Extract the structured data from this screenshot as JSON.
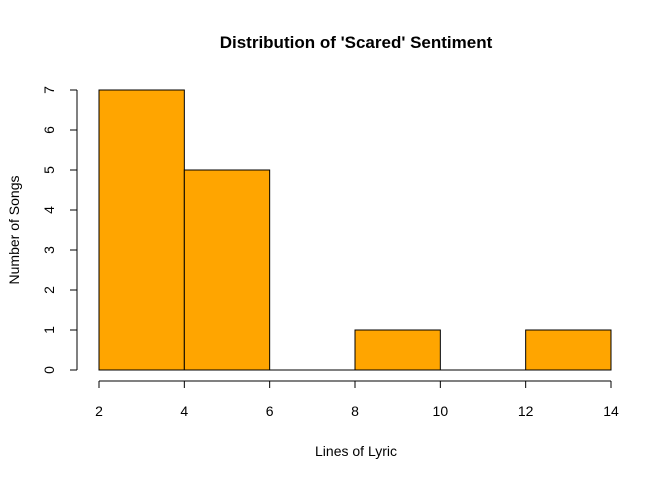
{
  "chart_data": {
    "type": "bar",
    "subtype": "histogram",
    "title": "Distribution of 'Scared' Sentiment",
    "xlabel": "Lines of Lyric",
    "ylabel": "Number of Songs",
    "bins": [
      {
        "start": 2,
        "end": 4,
        "count": 7
      },
      {
        "start": 4,
        "end": 6,
        "count": 5
      },
      {
        "start": 6,
        "end": 8,
        "count": 0
      },
      {
        "start": 8,
        "end": 10,
        "count": 1
      },
      {
        "start": 10,
        "end": 12,
        "count": 0
      },
      {
        "start": 12,
        "end": 14,
        "count": 1
      }
    ],
    "xlim": [
      2,
      14
    ],
    "ylim": [
      0,
      7
    ],
    "xticks": [
      2,
      4,
      6,
      8,
      10,
      12,
      14
    ],
    "yticks": [
      0,
      1,
      2,
      3,
      4,
      5,
      6,
      7
    ],
    "bar_color": "#FFA500",
    "grid": false,
    "legend": "none"
  }
}
